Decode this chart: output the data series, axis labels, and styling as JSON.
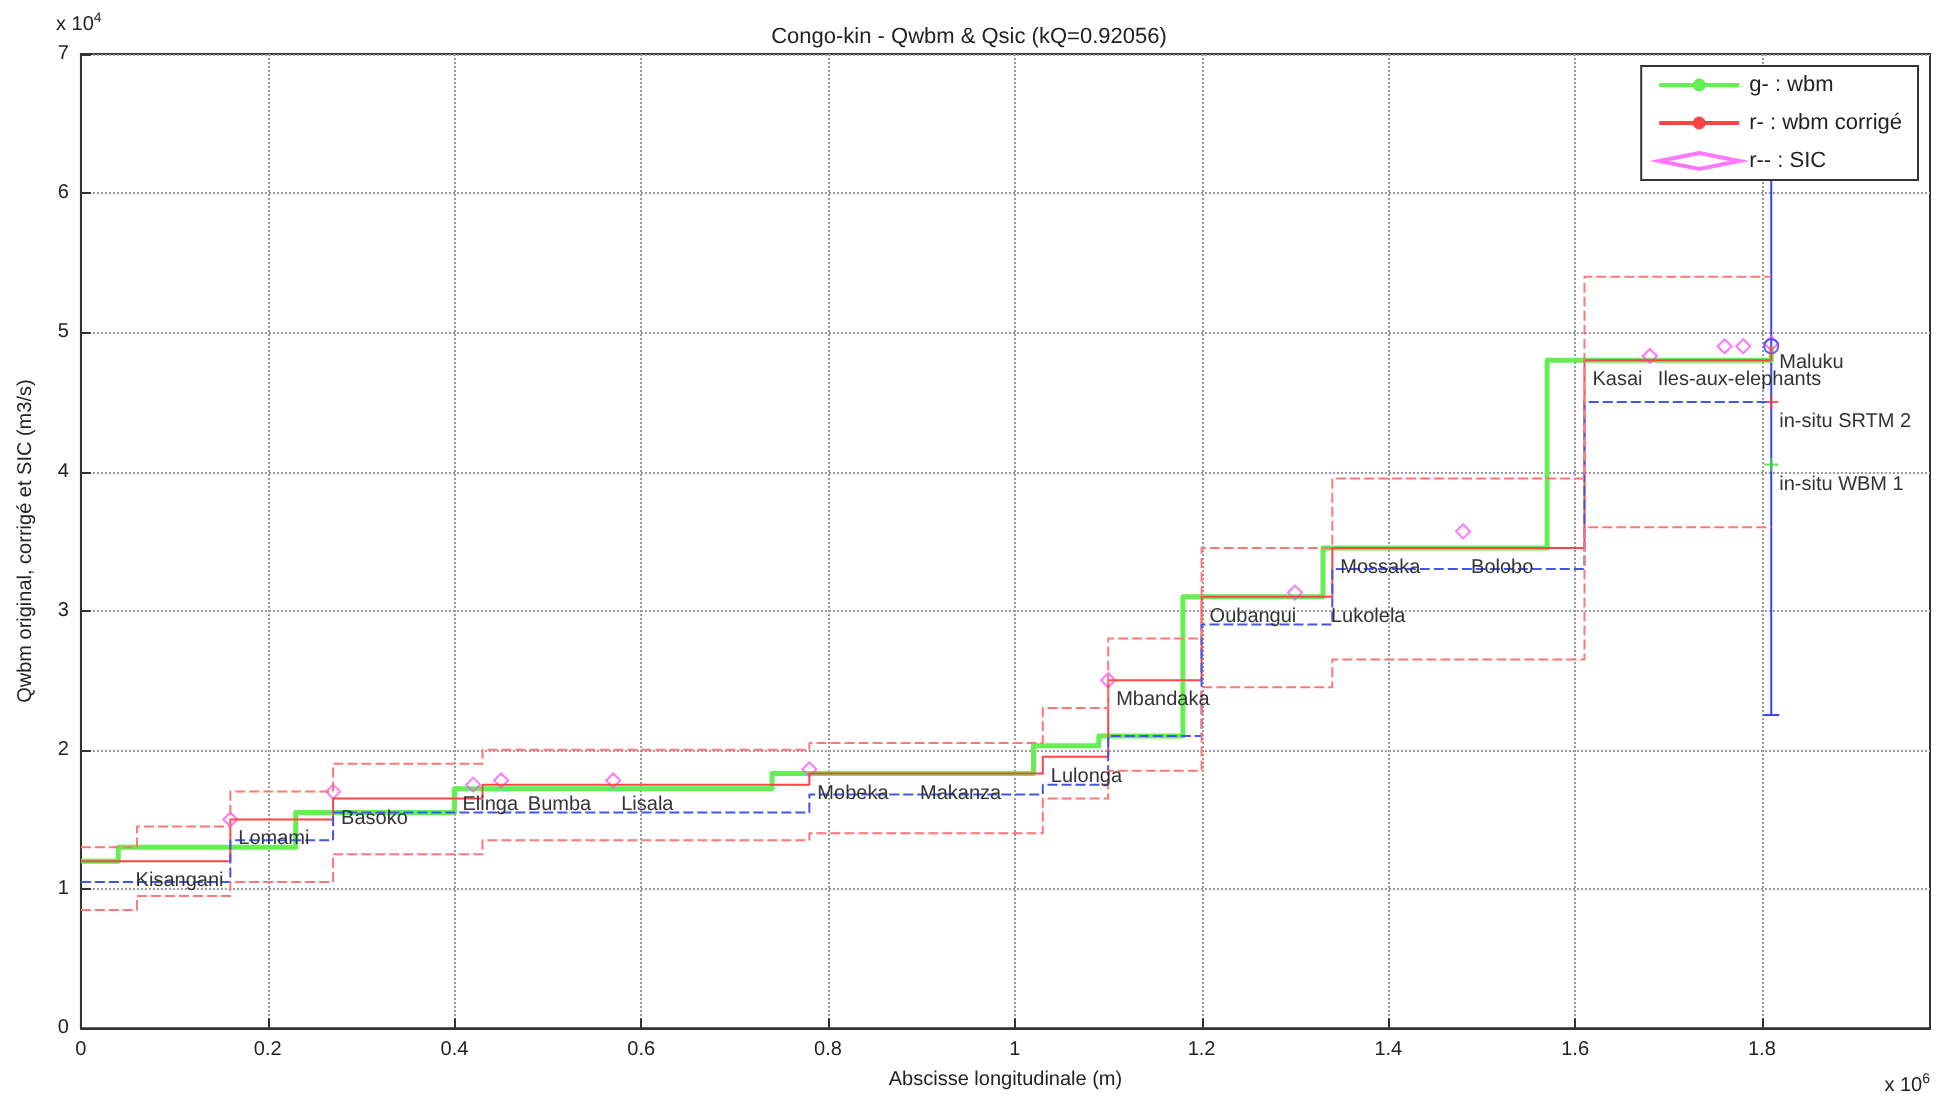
{
  "chart_data": {
    "type": "step",
    "title": "Congo-kin - Qwbm & Qsic (kQ=0.92056)",
    "xlabel": "Abscisse longitudinale (m)",
    "ylabel": "Qwbm original, corrigé et SIC (m3/s)",
    "xlim": [
      0,
      1.98
    ],
    "xticks": [
      0,
      0.2,
      0.4,
      0.6,
      0.8,
      1,
      1.2,
      1.4,
      1.6,
      1.8
    ],
    "ylim": [
      0,
      7
    ],
    "yticks": [
      0,
      1,
      2,
      3,
      4,
      5,
      6,
      7
    ],
    "grid": true,
    "legend": "top right",
    "series": [
      {
        "name": "g- : wbm",
        "color": "#66ee55",
        "line_style": "solid",
        "x": [
          0,
          0.04,
          0.23,
          0.4,
          0.74,
          1.02,
          1.09,
          1.18,
          1.33,
          1.57,
          1.81
        ],
        "values": [
          1.2,
          1.3,
          1.55,
          1.72,
          1.83,
          2.03,
          2.1,
          3.1,
          3.45,
          4.8,
          4.9
        ]
      },
      {
        "name": "r- : wbm corrigé",
        "color": "#ff4444",
        "line_style": "solid",
        "x": [
          0,
          0.16,
          0.27,
          0.43,
          0.78,
          1.03,
          1.1,
          1.2,
          1.34,
          1.61,
          1.81
        ],
        "values": [
          1.2,
          1.5,
          1.65,
          1.75,
          1.83,
          1.95,
          2.5,
          3.1,
          3.45,
          4.8,
          4.9
        ]
      },
      {
        "type": "step",
        "color": "#4455ee",
        "line_style": "dashed",
        "x": [
          0,
          0.16,
          0.27,
          0.78,
          1.03,
          1.1,
          1.2,
          1.34,
          1.61,
          1.81
        ],
        "values": [
          1.05,
          1.35,
          1.55,
          1.68,
          1.75,
          2.1,
          2.9,
          3.3,
          4.5,
          4.5
        ]
      },
      {
        "type": "step",
        "color": "#ff7777",
        "line_style": "dashed",
        "x": [
          0,
          0.06,
          0.16,
          0.27,
          0.43,
          0.78,
          1.03,
          1.1,
          1.2,
          1.34,
          1.61,
          1.81
        ],
        "values": [
          1.3,
          1.45,
          1.7,
          1.9,
          2.0,
          2.05,
          2.3,
          2.8,
          3.45,
          3.95,
          5.4,
          5.4
        ]
      },
      {
        "type": "step",
        "color": "#ff7777",
        "line_style": "dashed",
        "x": [
          0,
          0.06,
          0.16,
          0.27,
          0.43,
          0.78,
          1.03,
          1.1,
          1.2,
          1.34,
          1.61,
          1.81
        ],
        "values": [
          0.85,
          0.95,
          1.05,
          1.25,
          1.35,
          1.4,
          1.65,
          1.85,
          2.45,
          2.65,
          3.6,
          3.6
        ]
      },
      {
        "name": "r-- : SIC",
        "type": "scatter",
        "color": "#ff55ff",
        "marker": "diamond",
        "x": [
          0.16,
          0.27,
          0.42,
          0.45,
          0.57,
          0.78,
          1.1,
          1.3,
          1.48,
          1.68,
          1.76,
          1.78,
          1.81
        ],
        "values": [
          1.5,
          1.7,
          1.75,
          1.78,
          1.78,
          1.86,
          2.5,
          3.13,
          3.57,
          4.83,
          4.9,
          4.9,
          4.92
        ]
      },
      {
        "type": "scatter",
        "color": "#3344ff",
        "marker": "circle",
        "x": [
          1.81
        ],
        "values": [
          4.9
        ],
        "errors": [
          [
            2.25,
            6.5
          ]
        ]
      },
      {
        "type": "scatter",
        "color": "#ff3333",
        "marker": "cross",
        "x": [
          1.81
        ],
        "values": [
          4.5
        ]
      },
      {
        "type": "scatter",
        "color": "#33dd33",
        "marker": "cross",
        "x": [
          1.81
        ],
        "values": [
          4.05
        ]
      }
    ],
    "annotations": [
      "x 10$^{4}$",
      "x 10$^{6}$",
      {
        "text": "Kisangani",
        "x": 0.05,
        "y": 1.2
      },
      {
        "text": "Lomami",
        "x": 0.16,
        "y": 1.5
      },
      {
        "text": "Basoko",
        "x": 0.27,
        "y": 1.65
      },
      {
        "text": "Elinga",
        "x": 0.4,
        "y": 1.75
      },
      {
        "text": "Bumba",
        "x": 0.47,
        "y": 1.75
      },
      {
        "text": "Lisala",
        "x": 0.57,
        "y": 1.75
      },
      {
        "text": "Mobeka",
        "x": 0.78,
        "y": 1.83
      },
      {
        "text": "Makanza",
        "x": 0.89,
        "y": 1.83
      },
      {
        "text": "Lulonga",
        "x": 1.03,
        "y": 1.95
      },
      {
        "text": "Mbandaka",
        "x": 1.1,
        "y": 2.5
      },
      {
        "text": "Oubangui",
        "x": 1.2,
        "y": 3.1
      },
      {
        "text": "Lukolela",
        "x": 1.33,
        "y": 3.1
      },
      {
        "text": "Mossaka",
        "x": 1.34,
        "y": 3.45
      },
      {
        "text": "Bolobo",
        "x": 1.48,
        "y": 3.45
      },
      {
        "text": "Kasai",
        "x": 1.61,
        "y": 4.8
      },
      {
        "text": "Iles-aux-elephants",
        "x": 1.68,
        "y": 4.8
      },
      {
        "text": "Maluku",
        "x": 1.81,
        "y": 4.92
      },
      {
        "text": "in-situ SRTM 2",
        "x": 1.81,
        "y": 4.5
      },
      {
        "text": "in-situ WBM 1",
        "x": 1.81,
        "y": 4.05
      }
    ]
  }
}
